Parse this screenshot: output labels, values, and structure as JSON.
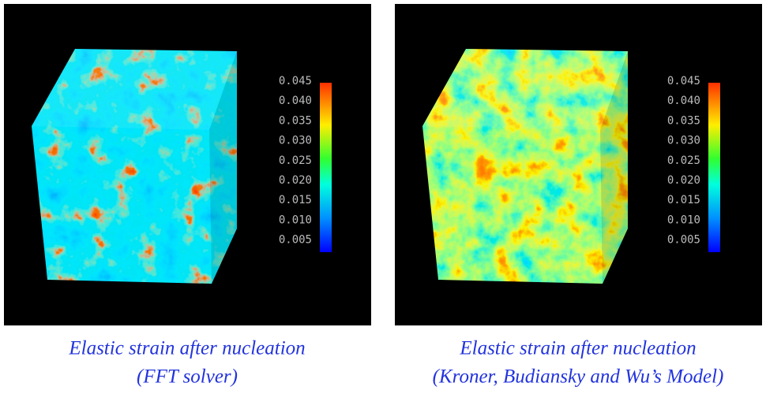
{
  "panels": [
    {
      "colorbar_ticks": [
        "0.045",
        "0.040",
        "0.035",
        "0.030",
        "0.025",
        "0.020",
        "0.015",
        "0.010",
        "0.005"
      ],
      "caption": [
        "Elastic strain after nucleation",
        "(FFT solver)"
      ]
    },
    {
      "colorbar_ticks": [
        "0.045",
        "0.040",
        "0.035",
        "0.030",
        "0.025",
        "0.020",
        "0.015",
        "0.010",
        "0.005"
      ],
      "caption": [
        "Elastic strain after nucleation",
        "(Kroner, Budiansky and Wu’s Model)"
      ]
    }
  ]
}
